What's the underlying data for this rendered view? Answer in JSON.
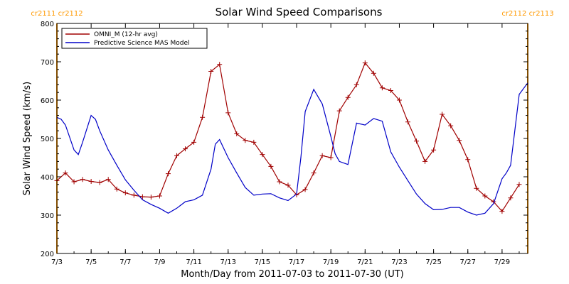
{
  "chart_data": {
    "type": "line",
    "title": "Solar Wind Speed Comparisons",
    "xlabel": "Month/Day from 2011-07-03 to 2011-07-30 (UT)",
    "ylabel": "Solar Wind Speed (km/s)",
    "xlim": [
      "2011-07-03",
      "2011-07-30T12:00"
    ],
    "ylim": [
      200,
      800
    ],
    "x_ticks": [
      "7/3",
      "7/5",
      "7/7",
      "7/9",
      "7/11",
      "7/13",
      "7/15",
      "7/17",
      "7/19",
      "7/21",
      "7/23",
      "7/25",
      "7/27",
      "7/29"
    ],
    "y_ticks": [
      200,
      300,
      400,
      500,
      600,
      700,
      800
    ],
    "grid": false,
    "legend_position": "top-left",
    "carrington_markers": [
      {
        "date": "2011-07-03",
        "labels": [
          "cr2111",
          "cr2112"
        ],
        "color": "#ff9900"
      },
      {
        "date": "2011-07-30T12:00",
        "labels": [
          "cr2112",
          "cr2113"
        ],
        "color": "#ff9900"
      }
    ],
    "series": [
      {
        "name": "OMNI_M (12-hr avg)",
        "color": "#a00000",
        "marker": "plus",
        "x": [
          "2011-07-03T00:00",
          "2011-07-03T12:00",
          "2011-07-04T00:00",
          "2011-07-04T12:00",
          "2011-07-05T00:00",
          "2011-07-05T12:00",
          "2011-07-06T00:00",
          "2011-07-06T12:00",
          "2011-07-07T00:00",
          "2011-07-07T12:00",
          "2011-07-08T00:00",
          "2011-07-08T12:00",
          "2011-07-09T00:00",
          "2011-07-09T12:00",
          "2011-07-10T00:00",
          "2011-07-10T12:00",
          "2011-07-11T00:00",
          "2011-07-11T12:00",
          "2011-07-12T00:00",
          "2011-07-12T12:00",
          "2011-07-13T00:00",
          "2011-07-13T12:00",
          "2011-07-14T00:00",
          "2011-07-14T12:00",
          "2011-07-15T00:00",
          "2011-07-15T12:00",
          "2011-07-16T00:00",
          "2011-07-16T12:00",
          "2011-07-17T00:00",
          "2011-07-17T12:00",
          "2011-07-18T00:00",
          "2011-07-18T12:00",
          "2011-07-19T00:00",
          "2011-07-19T12:00",
          "2011-07-20T00:00",
          "2011-07-20T12:00",
          "2011-07-21T00:00",
          "2011-07-21T12:00",
          "2011-07-22T00:00",
          "2011-07-22T12:00",
          "2011-07-23T00:00",
          "2011-07-23T12:00",
          "2011-07-24T00:00",
          "2011-07-24T12:00",
          "2011-07-25T00:00",
          "2011-07-25T12:00",
          "2011-07-26T00:00",
          "2011-07-26T12:00",
          "2011-07-27T00:00",
          "2011-07-27T12:00",
          "2011-07-28T00:00",
          "2011-07-28T12:00",
          "2011-07-29T00:00",
          "2011-07-29T12:00",
          "2011-07-30T00:00"
        ],
        "values": [
          390,
          410,
          387,
          393,
          388,
          385,
          393,
          368,
          358,
          352,
          348,
          347,
          350,
          408,
          455,
          473,
          490,
          555,
          675,
          693,
          567,
          512,
          495,
          490,
          458,
          427,
          387,
          378,
          353,
          367,
          410,
          455,
          450,
          572,
          607,
          640,
          697,
          670,
          632,
          625,
          600,
          543,
          493,
          440,
          470,
          563,
          533,
          495,
          445,
          370,
          350,
          335,
          310,
          345,
          380
        ]
      },
      {
        "name": "Predictive Science MAS Model",
        "color": "#0000c8",
        "marker": "none",
        "x": [
          "2011-07-03T00:00",
          "2011-07-03T06:00",
          "2011-07-03T12:00",
          "2011-07-04T00:00",
          "2011-07-04T06:00",
          "2011-07-04T12:00",
          "2011-07-05T00:00",
          "2011-07-05T06:00",
          "2011-07-05T12:00",
          "2011-07-06T00:00",
          "2011-07-06T12:00",
          "2011-07-07T00:00",
          "2011-07-07T12:00",
          "2011-07-08T00:00",
          "2011-07-08T12:00",
          "2011-07-09T00:00",
          "2011-07-09T12:00",
          "2011-07-10T00:00",
          "2011-07-10T12:00",
          "2011-07-11T00:00",
          "2011-07-11T12:00",
          "2011-07-12T00:00",
          "2011-07-12T06:00",
          "2011-07-12T12:00",
          "2011-07-13T00:00",
          "2011-07-13T12:00",
          "2011-07-14T00:00",
          "2011-07-14T12:00",
          "2011-07-15T00:00",
          "2011-07-15T12:00",
          "2011-07-16T00:00",
          "2011-07-16T12:00",
          "2011-07-17T00:00",
          "2011-07-17T06:00",
          "2011-07-17T12:00",
          "2011-07-18T00:00",
          "2011-07-18T12:00",
          "2011-07-19T00:00",
          "2011-07-19T06:00",
          "2011-07-19T12:00",
          "2011-07-20T00:00",
          "2011-07-20T12:00",
          "2011-07-21T00:00",
          "2011-07-21T12:00",
          "2011-07-22T00:00",
          "2011-07-22T12:00",
          "2011-07-23T00:00",
          "2011-07-23T12:00",
          "2011-07-24T00:00",
          "2011-07-24T12:00",
          "2011-07-25T00:00",
          "2011-07-25T12:00",
          "2011-07-26T00:00",
          "2011-07-26T12:00",
          "2011-07-27T00:00",
          "2011-07-27T12:00",
          "2011-07-28T00:00",
          "2011-07-28T12:00",
          "2011-07-29T00:00",
          "2011-07-29T06:00",
          "2011-07-29T12:00",
          "2011-07-30T00:00",
          "2011-07-30T12:00"
        ],
        "values": [
          555,
          550,
          535,
          470,
          458,
          490,
          560,
          550,
          520,
          470,
          430,
          392,
          365,
          340,
          328,
          318,
          305,
          318,
          335,
          340,
          352,
          420,
          485,
          497,
          450,
          410,
          372,
          352,
          355,
          356,
          345,
          338,
          355,
          450,
          570,
          628,
          590,
          505,
          460,
          440,
          432,
          540,
          535,
          552,
          545,
          465,
          425,
          390,
          355,
          330,
          314,
          315,
          320,
          320,
          308,
          300,
          305,
          330,
          395,
          410,
          430,
          615,
          645
        ]
      }
    ]
  }
}
